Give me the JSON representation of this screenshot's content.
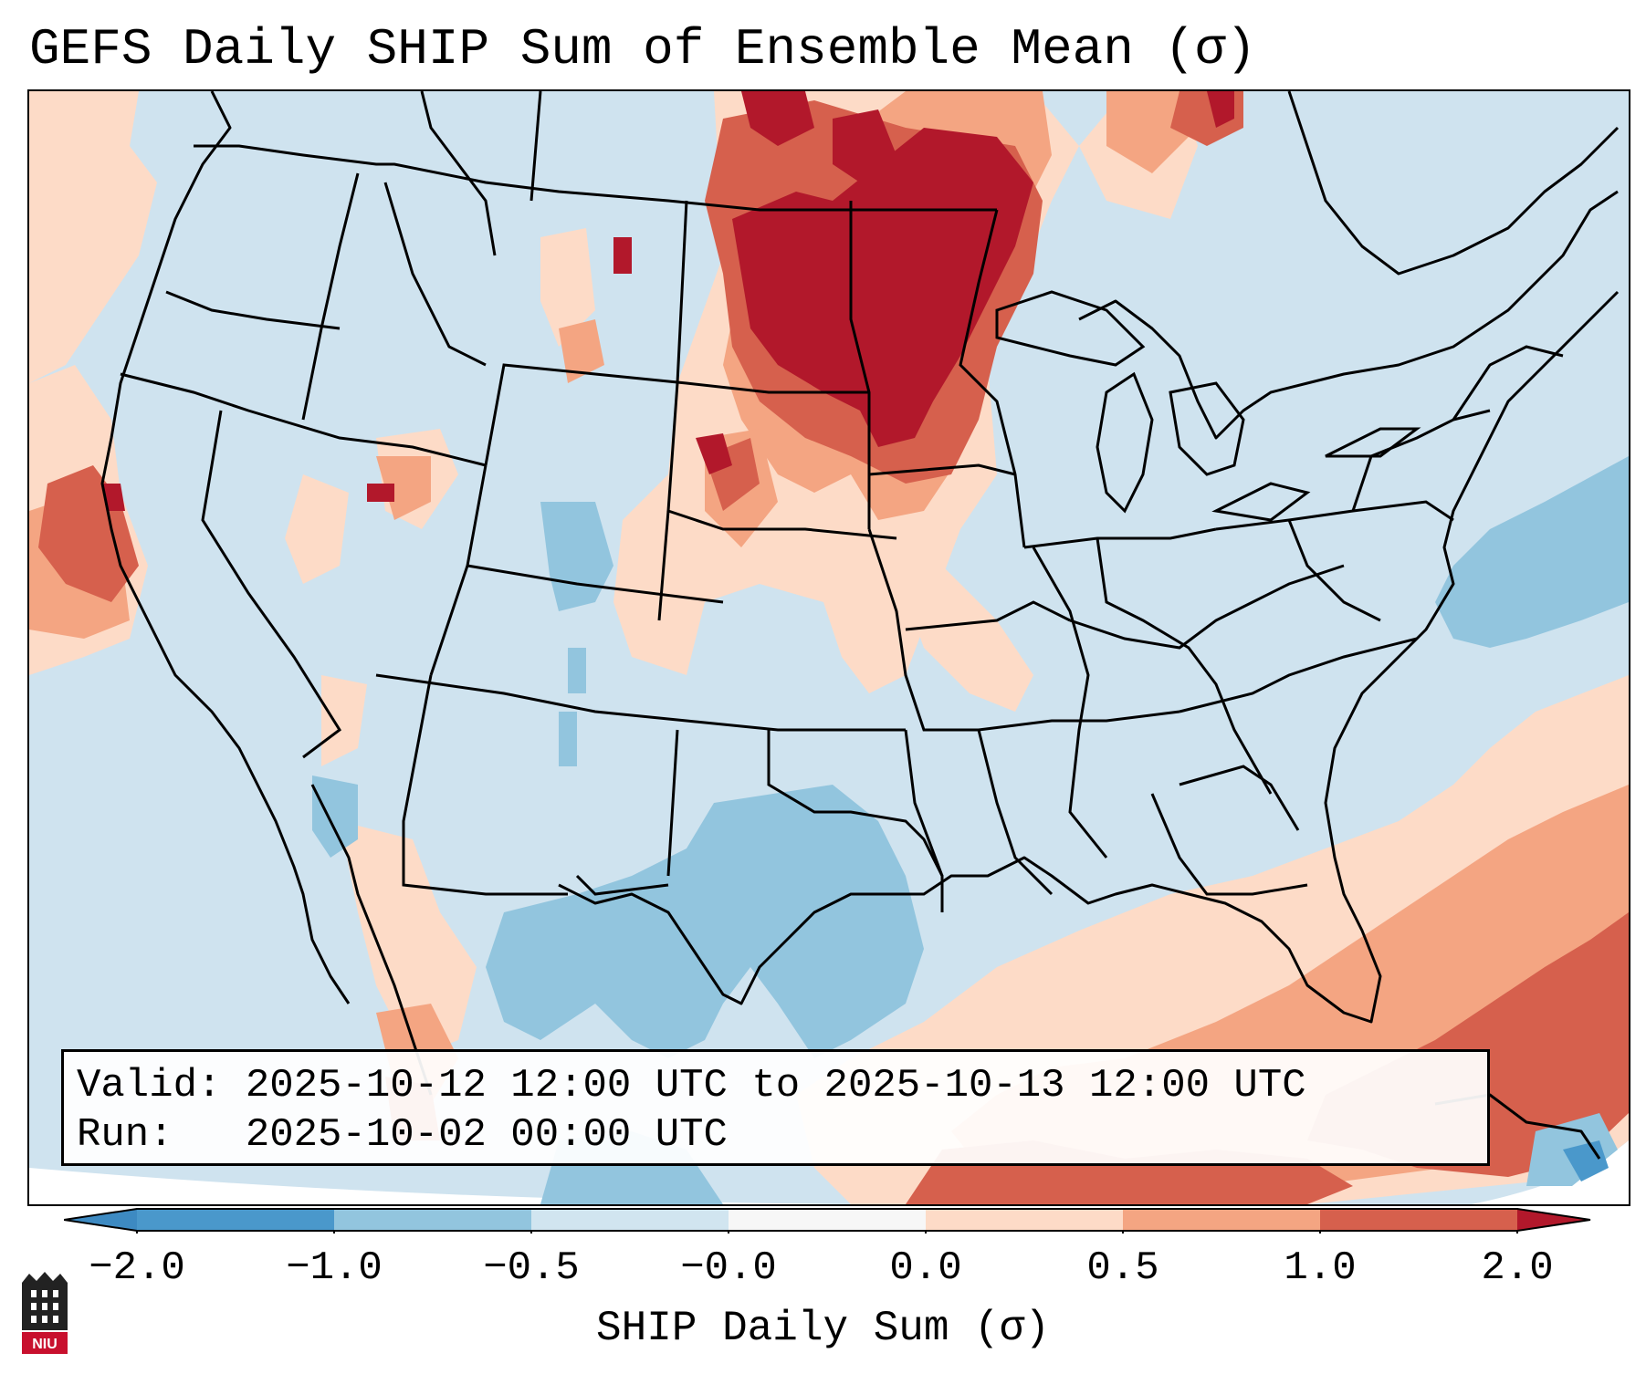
{
  "title": "GEFS Daily SHIP Sum of Ensemble Mean (σ)",
  "info": {
    "valid_label": "Valid:",
    "valid_value": "2025-10-12 12:00 UTC to 2025-10-13 12:00 UTC",
    "run_label": "Run:",
    "run_value": "2025-10-02 00:00 UTC"
  },
  "colorbar": {
    "label": "SHIP Daily Sum (σ)",
    "ticks": [
      "−2.0",
      "−1.0",
      "−0.5",
      "−0.0",
      "0.0",
      "0.5",
      "1.0",
      "2.0"
    ],
    "bins": [
      {
        "range": "< -2.0",
        "color": "#3d8ac2"
      },
      {
        "range": "-2.0 to -1.0",
        "color": "#4a98cb"
      },
      {
        "range": "-1.0 to -0.5",
        "color": "#92c5de"
      },
      {
        "range": "-0.5 to -0.0",
        "color": "#d1e5f0"
      },
      {
        "range": "-0.0 to 0.0",
        "color": "#f7f7f7"
      },
      {
        "range": "0.0 to 0.5",
        "color": "#fddbc7"
      },
      {
        "range": "0.5 to 1.0",
        "color": "#f4a582"
      },
      {
        "range": "1.0 to 2.0",
        "color": "#d6604d"
      },
      {
        "range": "> 2.0",
        "color": "#b2182b"
      }
    ]
  },
  "logo": {
    "text": "NIU"
  },
  "colors": {
    "background_field": "#cfe3ef",
    "light_blue": "#92c5de",
    "mid_blue": "#4a98cb",
    "light_red": "#fddbc7",
    "mid_red": "#f4a582",
    "red": "#d6604d",
    "dark_red": "#b2182b"
  }
}
